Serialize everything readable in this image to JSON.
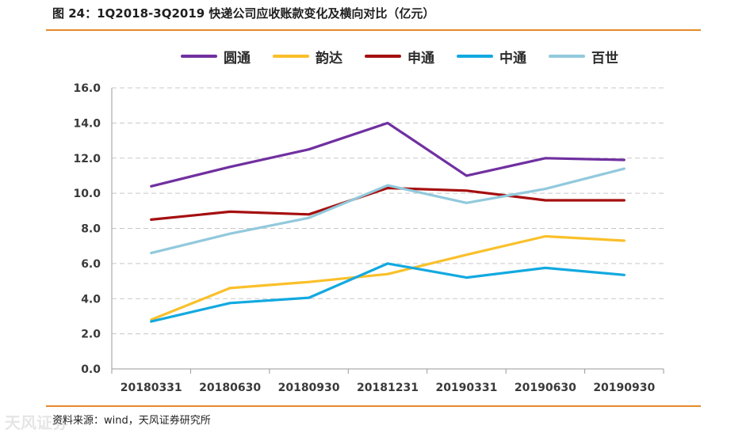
{
  "header": {
    "title": "图 24：1Q2018-3Q2019 快递公司应收账款变化及横向对比（亿元）"
  },
  "chart_data": {
    "type": "line",
    "title": "1Q2018-3Q2019 快递公司应收账款变化及横向对比（亿元）",
    "xlabel": "",
    "ylabel": "",
    "categories": [
      "20180331",
      "20180630",
      "20180930",
      "20181231",
      "20190331",
      "20190630",
      "20190930"
    ],
    "ylim": [
      0,
      16
    ],
    "yticks": [
      "0.0",
      "2.0",
      "4.0",
      "6.0",
      "8.0",
      "10.0",
      "12.0",
      "14.0",
      "16.0"
    ],
    "grid": true,
    "legend_position": "top",
    "series": [
      {
        "name": "圆通",
        "color": "#7030a0",
        "values": [
          10.4,
          11.5,
          12.5,
          14.0,
          11.0,
          12.0,
          11.9
        ]
      },
      {
        "name": "韵达",
        "color": "#fac02a",
        "values": [
          2.8,
          4.6,
          4.95,
          5.4,
          6.5,
          7.55,
          7.3
        ]
      },
      {
        "name": "申通",
        "color": "#a50f0f",
        "values": [
          8.5,
          8.95,
          8.8,
          10.3,
          10.15,
          9.6,
          9.6
        ]
      },
      {
        "name": "中通",
        "color": "#12a9e0",
        "values": [
          2.7,
          3.75,
          4.05,
          6.0,
          5.2,
          5.75,
          5.35
        ]
      },
      {
        "name": "百世",
        "color": "#92c9dc",
        "values": [
          6.6,
          7.7,
          8.6,
          10.45,
          9.45,
          10.25,
          11.4
        ]
      }
    ]
  },
  "footer": {
    "source": "资料来源：wind，天风证券研究所",
    "watermark": "天风证券"
  }
}
